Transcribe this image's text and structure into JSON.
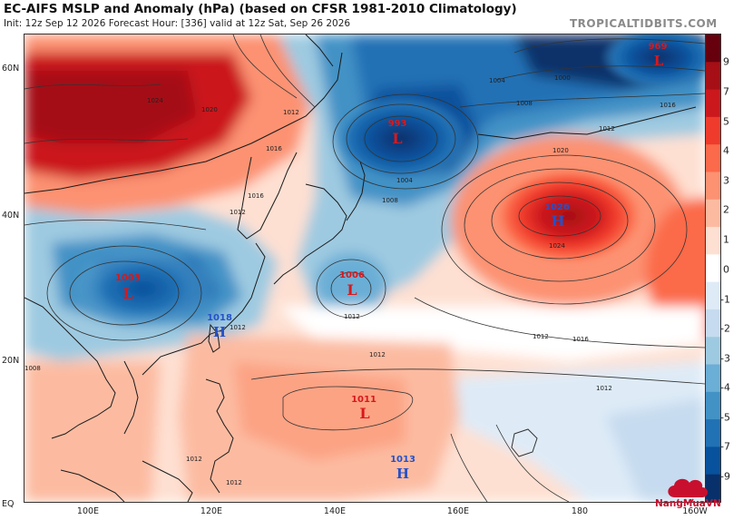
{
  "header": {
    "title": "EC-AIFS MSLP and Anomaly (hPa) (based on CFSR 1981-2010 Climatology)",
    "subtitle": "Init: 12z Sep 12 2026   Forecast Hour: [336]   valid at 12z Sat, Sep 26 2026",
    "brand": "TROPICALTIDBITS.COM"
  },
  "axes": {
    "lat_labels": [
      "60N",
      "40N",
      "20N",
      "EQ"
    ],
    "lon_labels": [
      "100E",
      "120E",
      "140E",
      "160E",
      "180",
      "160W"
    ]
  },
  "colorbar": {
    "labels": [
      "9",
      "7",
      "5",
      "4",
      "3",
      "2",
      "1",
      "0",
      "-1",
      "-2",
      "-3",
      "-4",
      "-5",
      "-7",
      "-9"
    ],
    "colors": [
      "#67000d",
      "#a50f15",
      "#cb181d",
      "#ef3b2c",
      "#fb6a4a",
      "#fc9272",
      "#fcbba1",
      "#fee0d2",
      "#ffffff",
      "#deebf7",
      "#c6dbef",
      "#9ecae1",
      "#6baed6",
      "#4292c6",
      "#2171b5",
      "#08519c",
      "#08306b"
    ]
  },
  "pressure_centers": [
    {
      "type": "L",
      "value": "969"
    },
    {
      "type": "L",
      "value": "993"
    },
    {
      "type": "H",
      "value": "1026"
    },
    {
      "type": "L",
      "value": "1003"
    },
    {
      "type": "L",
      "value": "1006"
    },
    {
      "type": "H",
      "value": "1018"
    },
    {
      "type": "L",
      "value": "1011"
    },
    {
      "type": "H",
      "value": "1013"
    }
  ],
  "isobar_labels": [
    "1004",
    "1000",
    "1008",
    "1012",
    "1016",
    "1020",
    "1024",
    "1012",
    "1016",
    "1012",
    "1008",
    "1004",
    "1012",
    "1016",
    "1020",
    "1024",
    "1008",
    "1012",
    "1012",
    "1012",
    "1016",
    "1012",
    "1012",
    "1012"
  ],
  "logo": {
    "text": "NangMuaVN"
  }
}
